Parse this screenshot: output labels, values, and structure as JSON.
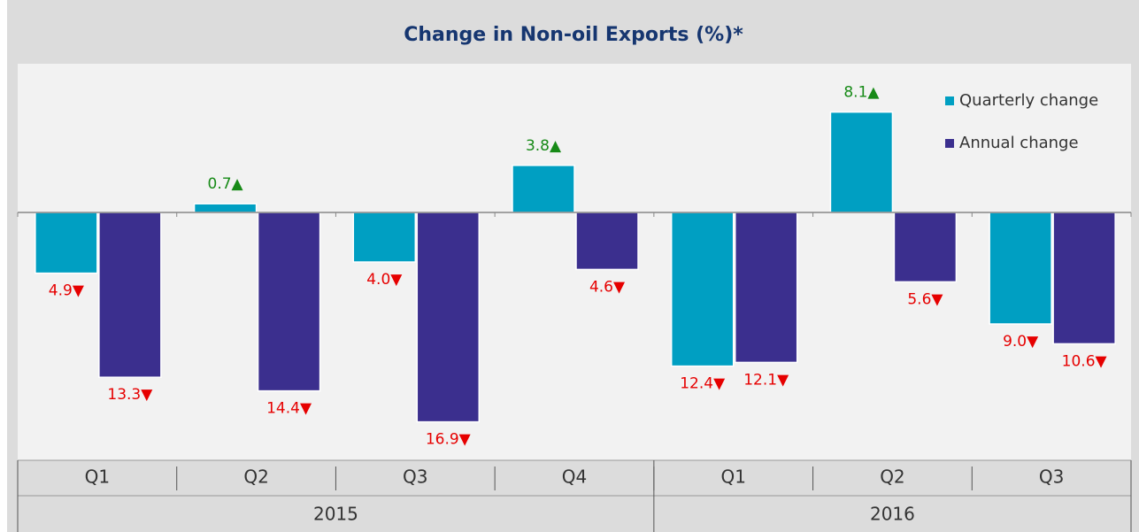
{
  "chart_data": {
    "type": "bar",
    "title": "Change in Non-oil Exports (%)*",
    "groups": [
      {
        "name": "2015",
        "categories": [
          "Q1",
          "Q2",
          "Q3",
          "Q4"
        ]
      },
      {
        "name": "2016",
        "categories": [
          "Q1",
          "Q2",
          "Q3"
        ]
      }
    ],
    "series": [
      {
        "name": "Quarterly change",
        "color": "#009fc2",
        "values": [
          -4.9,
          0.7,
          -4.0,
          3.8,
          -12.4,
          8.1,
          -9.0
        ],
        "value_labels": [
          "4.9▼",
          "0.7▲",
          "4.0▼",
          "3.8▲",
          "12.4▼",
          "8.1▲",
          "9.0▼"
        ]
      },
      {
        "name": "Annual change",
        "color": "#3b2f8e",
        "values": [
          -13.3,
          -14.4,
          -16.9,
          -4.6,
          -12.1,
          -5.6,
          -10.6
        ],
        "value_labels": [
          "13.3▼",
          "14.4▼",
          "16.9▼",
          "4.6▼",
          "12.1▼",
          "5.6▼",
          "10.6▼"
        ]
      }
    ],
    "ylim": [
      -20,
      12
    ],
    "positive_label_color": "#178a17",
    "negative_label_color": "#e60000",
    "legend": "top-right"
  }
}
